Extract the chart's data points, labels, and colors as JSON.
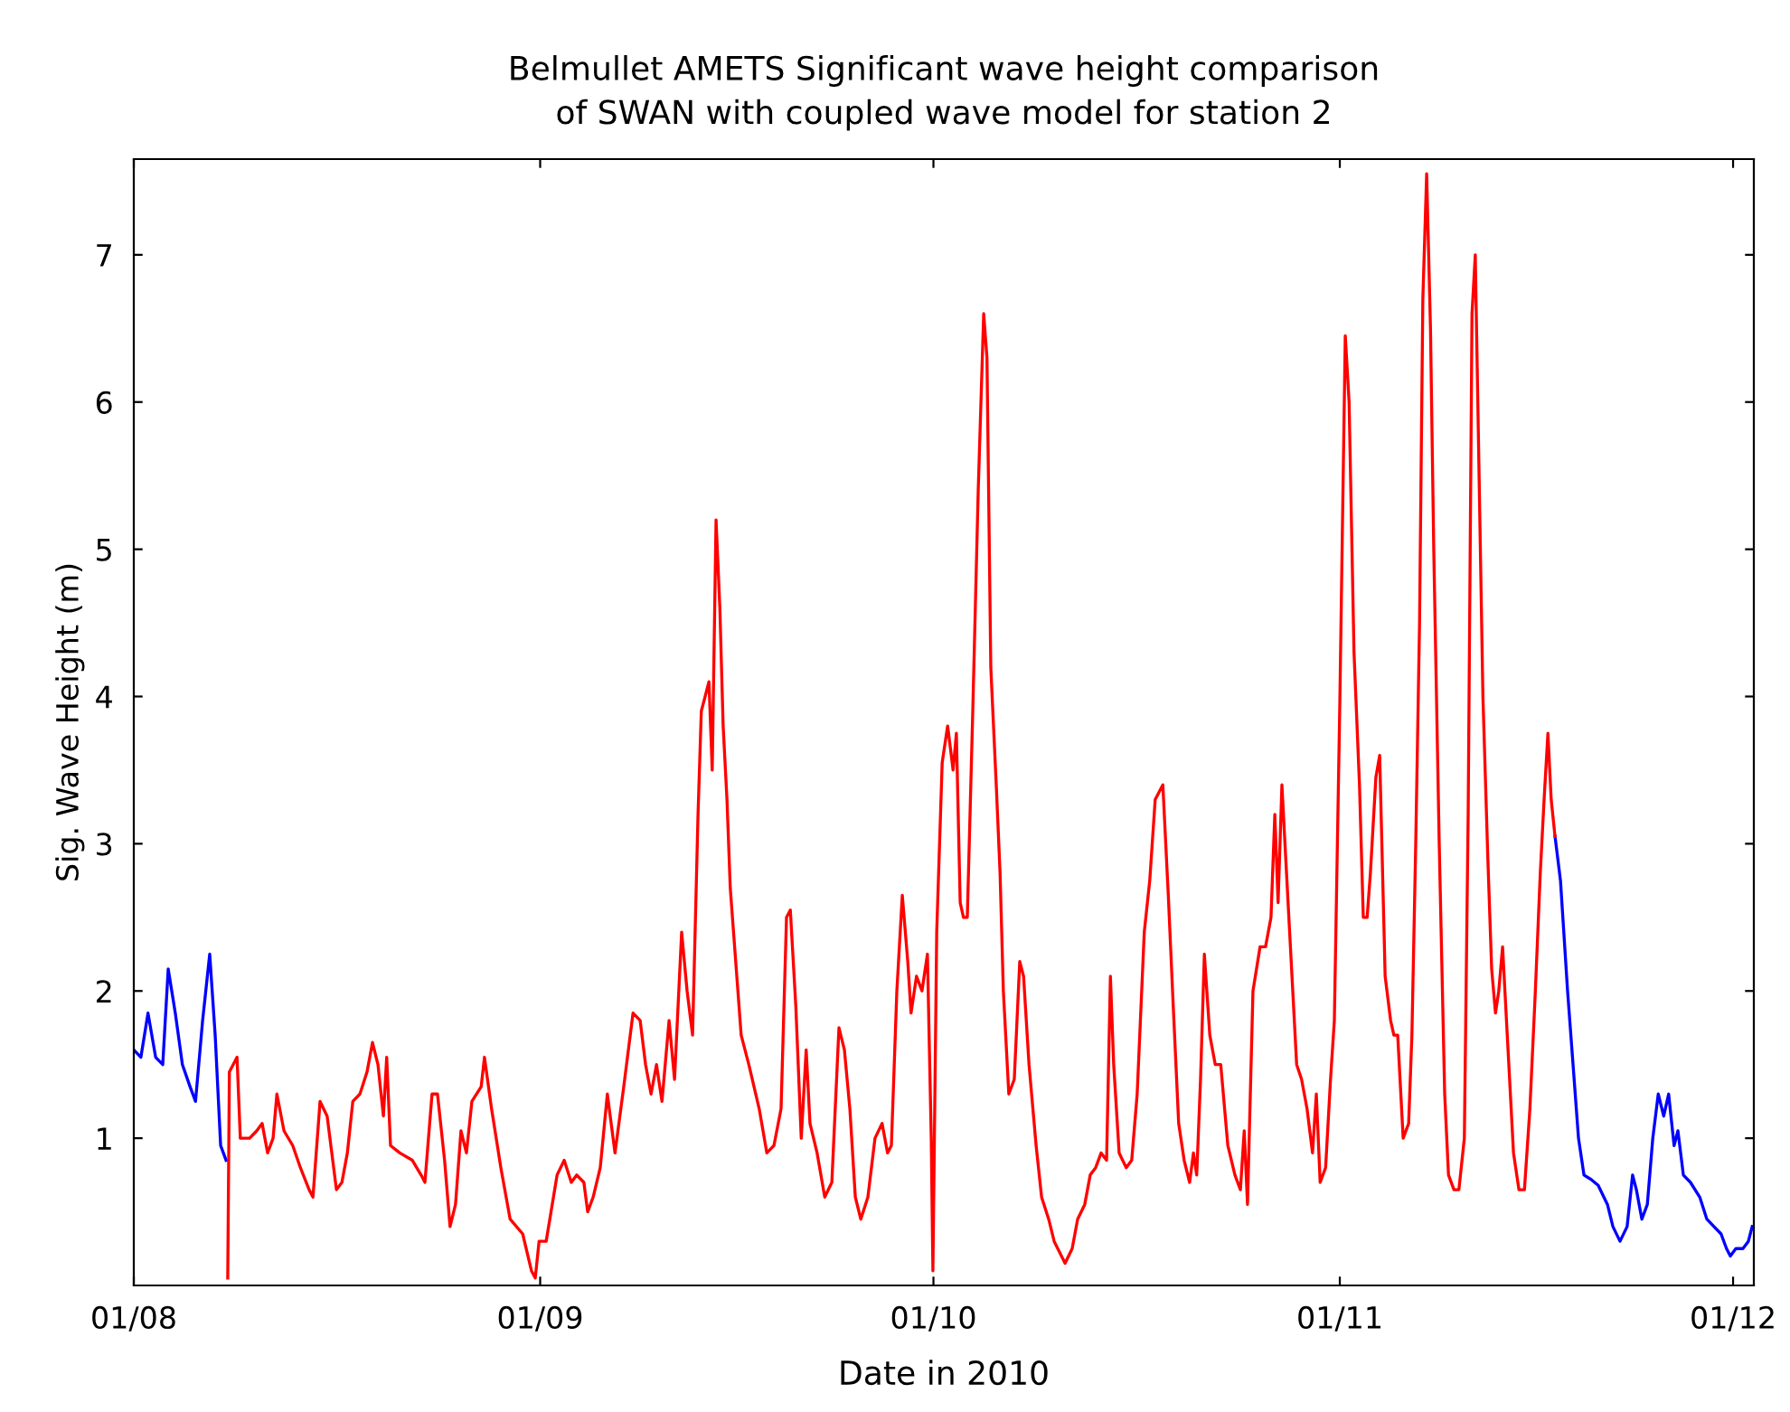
{
  "chart_data": {
    "type": "line",
    "title": "Belmullet AMETS Significant wave height comparison\nof SWAN with coupled wave model for station 2",
    "xlabel": "Date in 2010",
    "ylabel": "Sig. Wave Height (m)",
    "series": [
      {
        "color": "#0000ff",
        "x": [
          "2010-08-01T00:00",
          "2010-08-01T13:00",
          "2010-08-02T02:00",
          "2010-08-02T16:00",
          "2010-08-03T05:00",
          "2010-08-03T15:00",
          "2010-08-04T04:00",
          "2010-08-04T17:00",
          "2010-08-05T07:00",
          "2010-08-05T17:00",
          "2010-08-06T06:00",
          "2010-08-06T19:00",
          "2010-08-07T05:00",
          "2010-08-07T15:00",
          "2010-08-08T01:00",
          "2010-10-01T00:00",
          "2010-11-17T10:00",
          "2010-11-17T20:00",
          "2010-11-18T09:00",
          "2010-11-18T19:00",
          "2010-11-19T05:00",
          "2010-11-19T15:00",
          "2010-11-20T04:00",
          "2010-11-20T17:00",
          "2010-11-21T10:00",
          "2010-11-21T20:00",
          "2010-11-22T09:00",
          "2010-11-22T22:00",
          "2010-11-23T08:00",
          "2010-11-23T15:00",
          "2010-11-24T01:00",
          "2010-11-24T11:00",
          "2010-11-24T21:00",
          "2010-11-25T07:00",
          "2010-11-25T17:00",
          "2010-11-26T02:00",
          "2010-11-26T12:00",
          "2010-11-26T19:00",
          "2010-11-27T05:00",
          "2010-11-27T18:00",
          "2010-11-28T11:00",
          "2010-11-29T00:00",
          "2010-11-29T13:00",
          "2010-11-30T02:00",
          "2010-11-30T12:00",
          "2010-11-30T19:00",
          "2010-12-01T05:00",
          "2010-12-01T18:00",
          "2010-12-02T04:00",
          "2010-12-02T11:00"
        ],
        "values": [
          1.6,
          1.55,
          1.85,
          1.55,
          1.5,
          2.15,
          1.85,
          1.5,
          1.35,
          1.25,
          1.8,
          2.25,
          1.7,
          0.95,
          0.85,
          null,
          3.05,
          2.75,
          2.0,
          1.5,
          1.0,
          0.75,
          0.72,
          0.68,
          0.55,
          0.4,
          0.3,
          0.4,
          0.75,
          0.65,
          0.45,
          0.55,
          1.0,
          1.3,
          1.15,
          1.3,
          0.95,
          1.05,
          0.75,
          0.7,
          0.6,
          0.45,
          0.4,
          0.35,
          0.25,
          0.2,
          0.25,
          0.25,
          0.3,
          0.4
        ]
      },
      {
        "color": "#ff0000",
        "x": [
          "2010-08-08T04:00",
          "2010-08-08T07:00",
          "2010-08-08T21:00",
          "2010-08-09T03:00",
          "2010-08-09T20:00",
          "2010-08-10T09:00",
          "2010-08-10T19:00",
          "2010-08-11T05:00",
          "2010-08-11T15:00",
          "2010-08-11T22:00",
          "2010-08-12T11:00",
          "2010-08-13T03:00",
          "2010-08-13T17:00",
          "2010-08-14T09:00",
          "2010-08-14T16:00",
          "2010-08-15T05:00",
          "2010-08-15T18:00",
          "2010-08-16T11:00",
          "2010-08-16T21:00",
          "2010-08-17T07:00",
          "2010-08-17T17:00",
          "2010-08-18T06:00",
          "2010-08-18T19:00",
          "2010-08-19T05:00",
          "2010-08-19T15:00",
          "2010-08-20T01:00",
          "2010-08-20T07:00",
          "2010-08-20T14:00",
          "2010-08-21T07:00",
          "2010-08-22T06:00",
          "2010-08-22T22:00",
          "2010-08-23T05:00",
          "2010-08-23T18:00",
          "2010-08-24T04:00",
          "2010-08-24T17:00",
          "2010-08-25T03:00",
          "2010-08-25T13:00",
          "2010-08-25T23:00",
          "2010-08-26T09:00",
          "2010-08-26T19:00",
          "2010-08-27T12:00",
          "2010-08-27T18:00",
          "2010-08-28T07:00",
          "2010-08-29T00:00",
          "2010-08-29T17:00",
          "2010-08-30T16:00",
          "2010-08-31T08:00",
          "2010-08-31T15:00",
          "2010-08-31T22:00",
          "2010-09-01T11:00",
          "2010-09-02T07:00",
          "2010-09-02T20:00",
          "2010-09-03T09:00",
          "2010-09-03T19:00",
          "2010-09-04T08:00",
          "2010-09-04T15:00",
          "2010-09-05T01:00",
          "2010-09-05T14:00",
          "2010-09-06T03:00",
          "2010-09-06T17:00",
          "2010-09-07T09:00",
          "2010-09-08T02:00",
          "2010-09-08T15:00",
          "2010-09-09T01:00",
          "2010-09-09T11:00",
          "2010-09-09T21:00",
          "2010-09-10T07:00",
          "2010-09-10T20:00",
          "2010-09-11T06:00",
          "2010-09-11T19:00",
          "2010-09-12T05:00",
          "2010-09-12T15:00",
          "2010-09-13T01:00",
          "2010-09-13T07:00",
          "2010-09-13T21:00",
          "2010-09-14T03:00",
          "2010-09-14T10:00",
          "2010-09-14T17:00",
          "2010-09-14T23:00",
          "2010-09-15T06:00",
          "2010-09-15T12:00",
          "2010-09-15T19:00",
          "2010-09-16T08:00",
          "2010-09-16T22:00",
          "2010-09-17T17:00",
          "2010-09-18T07:00",
          "2010-09-18T20:00",
          "2010-09-19T09:00",
          "2010-09-19T19:00",
          "2010-09-20T02:00",
          "2010-09-20T12:00",
          "2010-09-20T22:00",
          "2010-09-21T07:00",
          "2010-09-21T14:00",
          "2010-09-22T03:00",
          "2010-09-22T17:00",
          "2010-09-23T06:00",
          "2010-09-23T19:00",
          "2010-09-24T05:00",
          "2010-09-24T15:00",
          "2010-09-25T01:00",
          "2010-09-25T11:00",
          "2010-09-26T00:00",
          "2010-09-26T13:00",
          "2010-09-27T02:00",
          "2010-09-27T12:00",
          "2010-09-27T19:00",
          "2010-09-28T05:00",
          "2010-09-28T15:00",
          "2010-09-29T01:00",
          "2010-09-29T07:00",
          "2010-09-29T17:00",
          "2010-09-30T03:00",
          "2010-09-30T13:00",
          "2010-09-30T20:00",
          "2010-09-30T23:00",
          "2010-10-01T06:00",
          "2010-10-01T16:00",
          "2010-10-02T02:00",
          "2010-10-02T12:00",
          "2010-10-02T18:00",
          "2010-10-03T01:00",
          "2010-10-03T07:00",
          "2010-10-03T14:00",
          "2010-10-04T00:00",
          "2010-10-04T10:00",
          "2010-10-04T20:00",
          "2010-10-05T02:00",
          "2010-10-05T09:00",
          "2010-10-05T19:00",
          "2010-10-06T02:00",
          "2010-10-06T08:00",
          "2010-10-06T18:00",
          "2010-10-07T04:00",
          "2010-10-07T14:00",
          "2010-10-07T21:00",
          "2010-10-08T07:00",
          "2010-10-08T20:00",
          "2010-10-09T06:00",
          "2010-10-09T19:00",
          "2010-10-10T05:00",
          "2010-10-11T01:00",
          "2010-10-11T14:00",
          "2010-10-12T00:00",
          "2010-10-12T13:00",
          "2010-10-12T23:00",
          "2010-10-13T09:00",
          "2010-10-13T19:00",
          "2010-10-14T05:00",
          "2010-10-14T12:00",
          "2010-10-14T18:00",
          "2010-10-15T04:00",
          "2010-10-15T17:00",
          "2010-10-16T03:00",
          "2010-10-16T13:00",
          "2010-10-17T02:00",
          "2010-10-17T12:00",
          "2010-10-17T22:00",
          "2010-10-18T12:00",
          "2010-10-18T22:00",
          "2010-10-19T07:00",
          "2010-10-19T17:00",
          "2010-10-20T03:00",
          "2010-10-20T13:00",
          "2010-10-20T20:00",
          "2010-10-21T02:00",
          "2010-10-21T09:00",
          "2010-10-21T16:00",
          "2010-10-22T02:00",
          "2010-10-22T12:00",
          "2010-10-22T22:00",
          "2010-10-23T11:00",
          "2010-10-24T00:00",
          "2010-10-24T10:00",
          "2010-10-24T17:00",
          "2010-10-24T23:00",
          "2010-10-25T09:00",
          "2010-10-25T22:00",
          "2010-10-26T08:00",
          "2010-10-26T18:00",
          "2010-10-27T01:00",
          "2010-10-27T07:00",
          "2010-10-27T14:00",
          "2010-10-27T21:00",
          "2010-10-28T07:00",
          "2010-10-28T17:00",
          "2010-10-29T02:00",
          "2010-10-29T12:00",
          "2010-10-29T22:00",
          "2010-10-30T05:00",
          "2010-10-30T12:00",
          "2010-10-30T22:00",
          "2010-10-31T07:00",
          "2010-10-31T14:00",
          "2010-11-01T00:00",
          "2010-11-01T10:00",
          "2010-11-01T17:00",
          "2010-11-02T02:00",
          "2010-11-02T12:00",
          "2010-11-02T19:00",
          "2010-11-03T02:00",
          "2010-11-03T08:00",
          "2010-11-03T18:00",
          "2010-11-04T01:00",
          "2010-11-04T11:00",
          "2010-11-04T21:00",
          "2010-11-05T03:00",
          "2010-11-05T10:00",
          "2010-11-05T20:00",
          "2010-11-06T06:00",
          "2010-11-06T12:00",
          "2010-11-06T19:00",
          "2010-11-07T02:00",
          "2010-11-07T08:00",
          "2010-11-07T15:00",
          "2010-11-07T22:00",
          "2010-11-08T04:00",
          "2010-11-08T14:00",
          "2010-11-09T00:00",
          "2010-11-09T07:00",
          "2010-11-09T17:00",
          "2010-11-10T02:00",
          "2010-11-10T12:00",
          "2010-11-10T19:00",
          "2010-11-11T02:00",
          "2010-11-11T08:00",
          "2010-11-11T15:00",
          "2010-11-11T22:00",
          "2010-11-12T07:00",
          "2010-11-12T14:00",
          "2010-11-12T21:00",
          "2010-11-13T03:00",
          "2010-11-13T10:00",
          "2010-11-13T20:00",
          "2010-11-14T06:00",
          "2010-11-14T16:00",
          "2010-11-15T02:00",
          "2010-11-15T12:00",
          "2010-11-15T22:00",
          "2010-11-16T07:00",
          "2010-11-16T14:00",
          "2010-11-16T21:00",
          "2010-11-17T03:00",
          "2010-11-17T10:00"
        ],
        "values": [
          0.05,
          1.45,
          1.55,
          1.0,
          1.0,
          1.05,
          1.1,
          0.9,
          1.0,
          1.3,
          1.05,
          0.95,
          0.8,
          0.65,
          0.6,
          1.25,
          1.15,
          0.65,
          0.7,
          0.9,
          1.25,
          1.3,
          1.45,
          1.65,
          1.5,
          1.15,
          1.55,
          0.95,
          0.9,
          0.85,
          0.75,
          0.7,
          1.3,
          1.3,
          0.85,
          0.4,
          0.55,
          1.05,
          0.9,
          1.25,
          1.35,
          1.55,
          1.2,
          0.8,
          0.45,
          0.35,
          0.1,
          0.05,
          0.3,
          0.3,
          0.75,
          0.85,
          0.7,
          0.75,
          0.7,
          0.5,
          0.6,
          0.8,
          1.3,
          0.9,
          1.35,
          1.85,
          1.8,
          1.5,
          1.3,
          1.5,
          1.25,
          1.8,
          1.4,
          2.4,
          2.0,
          1.7,
          3.2,
          3.9,
          4.1,
          3.5,
          5.2,
          4.6,
          3.8,
          3.3,
          2.7,
          2.35,
          1.7,
          1.5,
          1.2,
          0.9,
          0.95,
          1.2,
          2.5,
          2.55,
          1.9,
          1.0,
          1.6,
          1.1,
          0.9,
          0.6,
          0.7,
          1.75,
          1.6,
          1.2,
          0.6,
          0.45,
          0.6,
          1.0,
          1.1,
          0.9,
          0.95,
          2.0,
          2.65,
          2.2,
          1.85,
          2.1,
          2.0,
          2.25,
          1.0,
          0.1,
          2.4,
          3.55,
          3.8,
          3.5,
          3.75,
          2.6,
          2.5,
          2.5,
          3.9,
          5.4,
          6.6,
          6.3,
          4.2,
          3.4,
          2.8,
          2.0,
          1.3,
          1.4,
          2.2,
          2.1,
          1.5,
          0.95,
          0.6,
          0.45,
          0.3,
          0.15,
          0.25,
          0.45,
          0.55,
          0.75,
          0.8,
          0.9,
          0.85,
          2.1,
          1.5,
          0.9,
          0.8,
          0.85,
          1.3,
          2.4,
          2.75,
          3.3,
          3.4,
          2.65,
          1.9,
          1.1,
          0.85,
          0.7,
          0.9,
          0.75,
          1.4,
          2.25,
          1.7,
          1.5,
          1.5,
          0.95,
          0.75,
          0.65,
          1.05,
          0.55,
          2.0,
          2.3,
          2.3,
          2.5,
          3.2,
          2.6,
          3.4,
          2.9,
          2.2,
          1.5,
          1.4,
          1.2,
          0.9,
          1.3,
          0.7,
          0.8,
          1.4,
          1.8,
          3.95,
          6.45,
          6.0,
          4.3,
          3.4,
          2.5,
          2.5,
          2.8,
          3.45,
          3.6,
          2.1,
          1.8,
          1.7,
          1.7,
          1.0,
          1.1,
          1.7,
          3.0,
          4.5,
          6.7,
          7.55,
          6.5,
          5.0,
          3.0,
          1.3,
          0.75,
          0.65,
          0.65,
          1.0,
          3.2,
          6.6,
          7.0,
          5.5,
          4.0,
          2.9,
          2.15,
          1.85,
          2.0,
          2.3,
          1.6,
          0.9,
          0.65,
          0.65,
          1.2,
          2.0,
          2.8,
          3.3,
          3.75,
          3.3,
          3.05
        ]
      }
    ],
    "xlim": [
      "2010-08-01T00:00",
      "2010-12-02T14:00"
    ],
    "xticks": [
      {
        "value": "2010-08-01",
        "label": "01/08"
      },
      {
        "value": "2010-09-01",
        "label": "01/09"
      },
      {
        "value": "2010-10-01",
        "label": "01/10"
      },
      {
        "value": "2010-11-01",
        "label": "01/11"
      },
      {
        "value": "2010-12-01",
        "label": "01/12"
      }
    ],
    "ylim": [
      0,
      7.65
    ],
    "yticks": [
      1,
      2,
      3,
      4,
      5,
      6,
      7
    ],
    "grid": false,
    "marker": "none",
    "line_style": "solid"
  }
}
